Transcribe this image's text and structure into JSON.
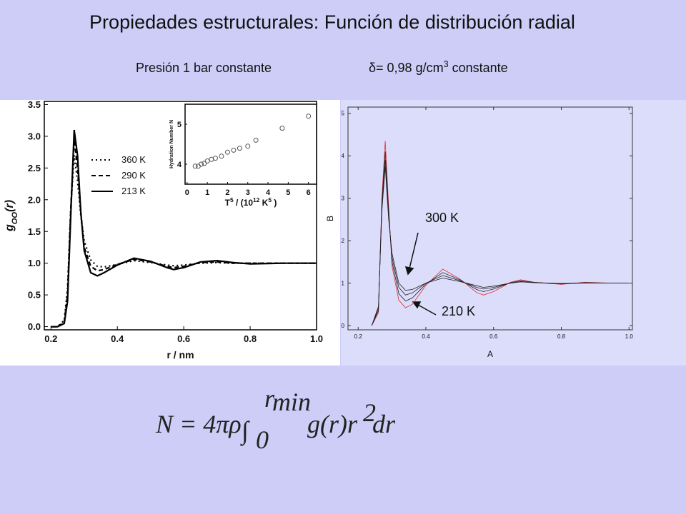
{
  "title": "Propiedades estructurales: Función de distribución radial",
  "subtitle_left": "Presión 1 bar constante",
  "subtitle_right": [
    {
      "text": "δ= 0,98 g/cm"
    },
    {
      "text": "3",
      "pos": "sup"
    },
    {
      "text": " constante"
    }
  ],
  "chart_data": [
    {
      "type": "line",
      "xlabel": [
        {
          "text": "r / nm"
        }
      ],
      "ylabel": [
        {
          "text": "g"
        },
        {
          "text": "OO",
          "pos": "sub"
        },
        {
          "text": "(r)"
        }
      ],
      "xlim": [
        0.18,
        1.0
      ],
      "xticks": [
        0.2,
        0.4,
        0.6,
        0.8,
        {
          "value": 1,
          "label": "1.0"
        }
      ],
      "ylim": [
        -0.05,
        3.55
      ],
      "yticks": [
        {
          "value": 0,
          "label": "0.0"
        },
        0.5,
        {
          "value": 1,
          "label": "1.0"
        },
        1.5,
        {
          "value": 2,
          "label": "2.0"
        },
        2.5,
        {
          "value": 3,
          "label": "3.0"
        },
        3.5
      ],
      "x": [
        0.2,
        0.22,
        0.24,
        0.25,
        0.26,
        0.27,
        0.28,
        0.29,
        0.3,
        0.32,
        0.34,
        0.36,
        0.4,
        0.45,
        0.5,
        0.55,
        0.57,
        0.6,
        0.65,
        0.7,
        0.75,
        0.8,
        0.9,
        1.0
      ],
      "series": [
        {
          "name": "360 K",
          "color": "#000000",
          "style": "dotted",
          "values": [
            0,
            0,
            0.1,
            0.6,
            1.9,
            2.7,
            2.3,
            1.75,
            1.35,
            1.05,
            0.95,
            0.94,
            0.98,
            1.04,
            1.01,
            0.97,
            0.96,
            0.97,
            1.0,
            1.01,
            1.0,
            1.0,
            1.0,
            1.0
          ]
        },
        {
          "name": "290 K",
          "color": "#000000",
          "style": "dashed",
          "values": [
            0,
            0,
            0.07,
            0.5,
            1.9,
            2.95,
            2.5,
            1.8,
            1.25,
            0.95,
            0.88,
            0.9,
            0.98,
            1.06,
            1.02,
            0.95,
            0.93,
            0.95,
            1.01,
            1.02,
            1.0,
            1.0,
            1.0,
            1.0
          ]
        },
        {
          "name": "213 K",
          "color": "#000000",
          "style": "solid",
          "values": [
            0,
            0,
            0.05,
            0.4,
            1.8,
            3.1,
            2.7,
            1.8,
            1.2,
            0.85,
            0.8,
            0.85,
            0.97,
            1.08,
            1.03,
            0.93,
            0.9,
            0.93,
            1.02,
            1.04,
            1.01,
            0.99,
            1.0,
            1.0
          ]
        }
      ],
      "legend": true
    },
    {
      "type": "scatter",
      "xlabel": [
        {
          "text": "T"
        },
        {
          "text": "5",
          "pos": "sup"
        },
        {
          "text": " / (10"
        },
        {
          "text": "12",
          "pos": "sup"
        },
        {
          "text": " K"
        },
        {
          "text": "5",
          "pos": "sup"
        },
        {
          "text": " )"
        }
      ],
      "ylabel": [
        {
          "text": "Hydration Number N"
        }
      ],
      "xlim": [
        -0.1,
        6.4
      ],
      "xticks": [
        0,
        1,
        2,
        3,
        4,
        5,
        6
      ],
      "ylim": [
        3.5,
        5.5
      ],
      "yticks": [
        4,
        5
      ],
      "x": [
        0.4,
        0.55,
        0.7,
        0.85,
        1.0,
        1.2,
        1.4,
        1.7,
        2.0,
        2.3,
        2.6,
        3.0,
        3.4,
        4.7,
        6.0
      ],
      "series": [
        {
          "color": "#555555",
          "values": [
            3.95,
            3.95,
            4.0,
            4.02,
            4.08,
            4.12,
            4.15,
            4.2,
            4.3,
            4.35,
            4.4,
            4.45,
            4.6,
            4.9,
            5.2
          ]
        }
      ]
    },
    {
      "type": "line",
      "xlabel": [
        {
          "text": "A"
        }
      ],
      "ylabel": [
        {
          "text": "B"
        }
      ],
      "xlim": [
        0.17,
        1.01
      ],
      "xticks": [
        0.2,
        0.4,
        0.6,
        0.8,
        {
          "value": 1,
          "label": "1.0"
        }
      ],
      "ylim": [
        -0.1,
        5.15
      ],
      "yticks": [
        0,
        1,
        2,
        3,
        4,
        5
      ],
      "x": [
        0.24,
        0.26,
        0.27,
        0.28,
        0.29,
        0.3,
        0.32,
        0.34,
        0.36,
        0.4,
        0.45,
        0.5,
        0.55,
        0.57,
        0.6,
        0.65,
        0.68,
        0.72,
        0.8,
        0.87,
        0.95,
        1.0
      ],
      "series": [
        {
          "color": "#e03030",
          "style": "solid",
          "values": [
            0,
            0.3,
            3.0,
            4.35,
            2.8,
            1.4,
            0.6,
            0.42,
            0.5,
            0.95,
            1.33,
            1.1,
            0.78,
            0.72,
            0.8,
            1.02,
            1.08,
            1.02,
            0.97,
            1.02,
            1.0,
            1.0
          ]
        },
        {
          "color": "#222222",
          "style": "solid",
          "values": [
            0,
            0.35,
            2.9,
            4.1,
            2.7,
            1.5,
            0.75,
            0.58,
            0.65,
            0.98,
            1.25,
            1.08,
            0.85,
            0.8,
            0.86,
            1.01,
            1.06,
            1.02,
            0.98,
            1.01,
            1.0,
            1.0
          ]
        },
        {
          "color": "#222222",
          "style": "solid",
          "values": [
            0,
            0.4,
            2.8,
            3.9,
            2.6,
            1.6,
            0.9,
            0.72,
            0.77,
            1.0,
            1.18,
            1.06,
            0.9,
            0.86,
            0.9,
            1.0,
            1.04,
            1.01,
            0.99,
            1.01,
            1.0,
            1.0
          ]
        },
        {
          "color": "#222222",
          "style": "solid",
          "values": [
            0,
            0.45,
            2.7,
            3.75,
            2.5,
            1.7,
            1.0,
            0.83,
            0.85,
            1.0,
            1.12,
            1.04,
            0.94,
            0.9,
            0.93,
            1.0,
            1.03,
            1.01,
            0.99,
            1.0,
            1.0,
            1.0
          ]
        }
      ],
      "annotations": [
        "300 K",
        "210 K"
      ]
    }
  ],
  "formula": {
    "lhs": "N = 4πρ",
    "integral": "∫",
    "lower": "0",
    "upper": "r",
    "upper_sub": "min",
    "body": "g(r)r",
    "power": "2",
    "tail": "dr"
  }
}
